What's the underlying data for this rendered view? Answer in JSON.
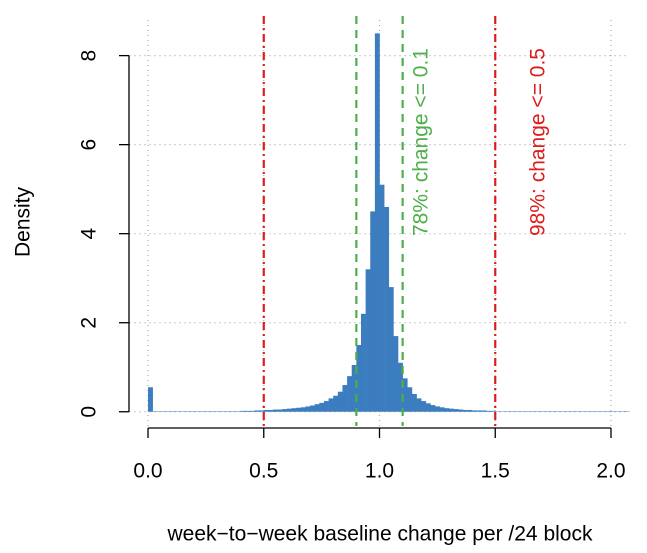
{
  "chart_data": {
    "type": "histogram",
    "xlabel": "week−to−week baseline change per /24 block",
    "ylabel": "Density",
    "color": "#3b7dbf",
    "bins": [
      0,
      0.02,
      0.04,
      0.06,
      0.08,
      0.1,
      0.12,
      0.14,
      0.16,
      0.18,
      0.2,
      0.22,
      0.24,
      0.26,
      0.28,
      0.3,
      0.32,
      0.34,
      0.36,
      0.38,
      0.4,
      0.42,
      0.44,
      0.46,
      0.48,
      0.5,
      0.52,
      0.54,
      0.56,
      0.58,
      0.6,
      0.62,
      0.64,
      0.66,
      0.68,
      0.7,
      0.72,
      0.74,
      0.76,
      0.78,
      0.8,
      0.82,
      0.84,
      0.86,
      0.88,
      0.9,
      0.92,
      0.94,
      0.96,
      0.98,
      1,
      1.02,
      1.04,
      1.06,
      1.08,
      1.1,
      1.12,
      1.14,
      1.16,
      1.18,
      1.2,
      1.22,
      1.24,
      1.26,
      1.28,
      1.3,
      1.32,
      1.34,
      1.36,
      1.38,
      1.4,
      1.42,
      1.44,
      1.46,
      1.48,
      1.5,
      1.52,
      1.54,
      1.56,
      1.58,
      1.6,
      1.62,
      1.64,
      1.66,
      1.68,
      1.7,
      1.72,
      1.74,
      1.76,
      1.78,
      1.8,
      1.82,
      1.84,
      1.86,
      1.88,
      1.9,
      1.92,
      1.94,
      1.96,
      1.98,
      2,
      2.02,
      2.04,
      2.06,
      2.08
    ],
    "values": [
      0.55,
      0.01,
      0.01,
      0.01,
      0.01,
      0.01,
      0.01,
      0.01,
      0.01,
      0.01,
      0.01,
      0.01,
      0.01,
      0.01,
      0.01,
      0.01,
      0.01,
      0.01,
      0.01,
      0.01,
      0.02,
      0.02,
      0.02,
      0.03,
      0.03,
      0.04,
      0.04,
      0.05,
      0.05,
      0.06,
      0.07,
      0.08,
      0.09,
      0.1,
      0.12,
      0.14,
      0.17,
      0.2,
      0.24,
      0.3,
      0.36,
      0.45,
      0.6,
      0.8,
      1.05,
      1.5,
      2.2,
      3.2,
      4.5,
      8.5,
      5.1,
      4.6,
      2.8,
      1.7,
      1.1,
      0.75,
      0.55,
      0.4,
      0.3,
      0.24,
      0.19,
      0.15,
      0.12,
      0.1,
      0.08,
      0.07,
      0.06,
      0.05,
      0.04,
      0.04,
      0.03,
      0.03,
      0.03,
      0.02,
      0.02,
      0.01,
      0.01,
      0.01,
      0.01,
      0.01,
      0.01,
      0.01,
      0.01,
      0.01,
      0.01,
      0.01,
      0.01,
      0.01,
      0.01,
      0.01,
      0.01,
      0.01,
      0.01,
      0.01,
      0.01,
      0.01,
      0.01,
      0.01,
      0.01,
      0.01,
      0.01,
      0.01,
      0.01,
      0.01
    ],
    "xlim": [
      -0.08,
      2.08
    ],
    "ylim": [
      -0.32,
      8.8
    ],
    "xticks": [
      {
        "value": 0,
        "label": "0.0"
      },
      0.5,
      {
        "value": 1,
        "label": "1.0"
      },
      1.5,
      {
        "value": 2,
        "label": "2.0"
      }
    ],
    "yticks": [
      0,
      2,
      4,
      6,
      8
    ],
    "grid": true,
    "vlines": [
      {
        "value": 0.5,
        "color": "#dd1c1c",
        "style": "dashdot"
      },
      {
        "value": 1.5,
        "color": "#dd1c1c",
        "style": "dashdot"
      },
      {
        "value": 0.9,
        "color": "#4daf4a",
        "style": "dashed"
      },
      {
        "value": 1.1,
        "color": "#4daf4a",
        "style": "dashed"
      }
    ],
    "annotations": [
      {
        "text": "78%: change <= 0.1",
        "color": "#4daf4a"
      },
      {
        "text": "98%: change <= 0.5",
        "color": "#dd1c1c"
      }
    ]
  }
}
